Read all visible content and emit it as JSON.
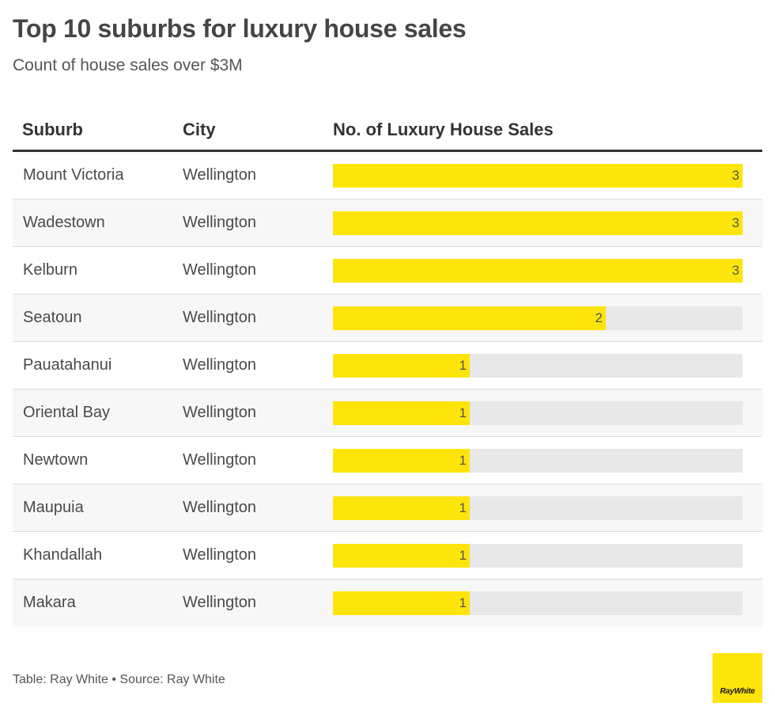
{
  "header": {
    "title": "Top 10 suburbs for luxury house sales",
    "subtitle": "Count of house sales over $3M"
  },
  "columns": {
    "suburb": "Suburb",
    "city": "City",
    "sales": "No. of Luxury House Sales"
  },
  "chart_data": {
    "type": "table",
    "title": "Top 10 suburbs for luxury house sales",
    "subtitle": "Count of house sales over $3M",
    "columns": [
      "Suburb",
      "City",
      "No. of Luxury House Sales"
    ],
    "max_value": 3,
    "rows": [
      {
        "suburb": "Mount Victoria",
        "city": "Wellington",
        "value": 3
      },
      {
        "suburb": "Wadestown",
        "city": "Wellington",
        "value": 3
      },
      {
        "suburb": "Kelburn",
        "city": "Wellington",
        "value": 3
      },
      {
        "suburb": "Seatoun",
        "city": "Wellington",
        "value": 2
      },
      {
        "suburb": "Pauatahanui",
        "city": "Wellington",
        "value": 1
      },
      {
        "suburb": "Oriental Bay",
        "city": "Wellington",
        "value": 1
      },
      {
        "suburb": "Newtown",
        "city": "Wellington",
        "value": 1
      },
      {
        "suburb": "Maupuia",
        "city": "Wellington",
        "value": 1
      },
      {
        "suburb": "Khandallah",
        "city": "Wellington",
        "value": 1
      },
      {
        "suburb": "Makara",
        "city": "Wellington",
        "value": 1
      }
    ]
  },
  "colors": {
    "bar": "#fde50c",
    "logo": "#fde50c"
  },
  "footer": {
    "text": "Table: Ray White • Source: Ray White"
  },
  "logo": {
    "text": "RayWhite"
  }
}
